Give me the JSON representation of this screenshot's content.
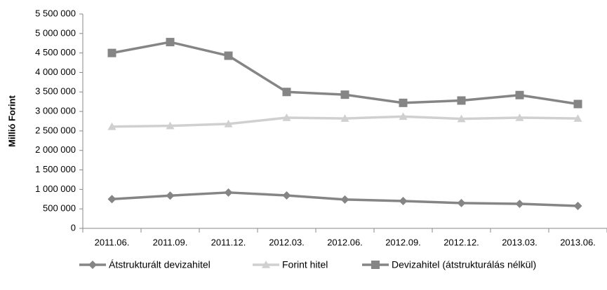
{
  "chart_data": {
    "type": "line",
    "ylabel": "Millió Forint",
    "categories": [
      "2011.06.",
      "2011.09.",
      "2011.12.",
      "2012.03.",
      "2012.06.",
      "2012.09.",
      "2012.12.",
      "2013.03.",
      "2013.06."
    ],
    "series": [
      {
        "name": "Átstrukturált devizahitel",
        "color": "#858585",
        "marker": "diamond",
        "values": [
          750000,
          840000,
          920000,
          845000,
          740000,
          700000,
          650000,
          630000,
          575000
        ]
      },
      {
        "name": "Forint hitel",
        "color": "#d0d0d0",
        "marker": "triangle",
        "values": [
          2610000,
          2630000,
          2680000,
          2840000,
          2820000,
          2870000,
          2810000,
          2840000,
          2820000
        ]
      },
      {
        "name": "Devizahitel (átstrukturálás nélkül)",
        "color": "#858585",
        "marker": "square",
        "values": [
          4500000,
          4780000,
          4430000,
          3500000,
          3430000,
          3220000,
          3280000,
          3420000,
          3190000
        ]
      }
    ],
    "ylim": [
      0,
      5500000
    ],
    "yticks": [
      0,
      {
        "value": 500000,
        "label": "500 000"
      },
      {
        "value": 1000000,
        "label": "1 000 000"
      },
      {
        "value": 1500000,
        "label": "1 500 000"
      },
      {
        "value": 2000000,
        "label": "2 000 000"
      },
      {
        "value": 2500000,
        "label": "2 500 000"
      },
      {
        "value": 3000000,
        "label": "3 000 000"
      },
      {
        "value": 3500000,
        "label": "3 500 000"
      },
      {
        "value": 4000000,
        "label": "4 000 000"
      },
      {
        "value": 4500000,
        "label": "4 500 000"
      },
      {
        "value": 5000000,
        "label": "5 000 000"
      },
      {
        "value": 5500000,
        "label": "5 500 000"
      }
    ],
    "grid": false,
    "legend": "bottom"
  }
}
